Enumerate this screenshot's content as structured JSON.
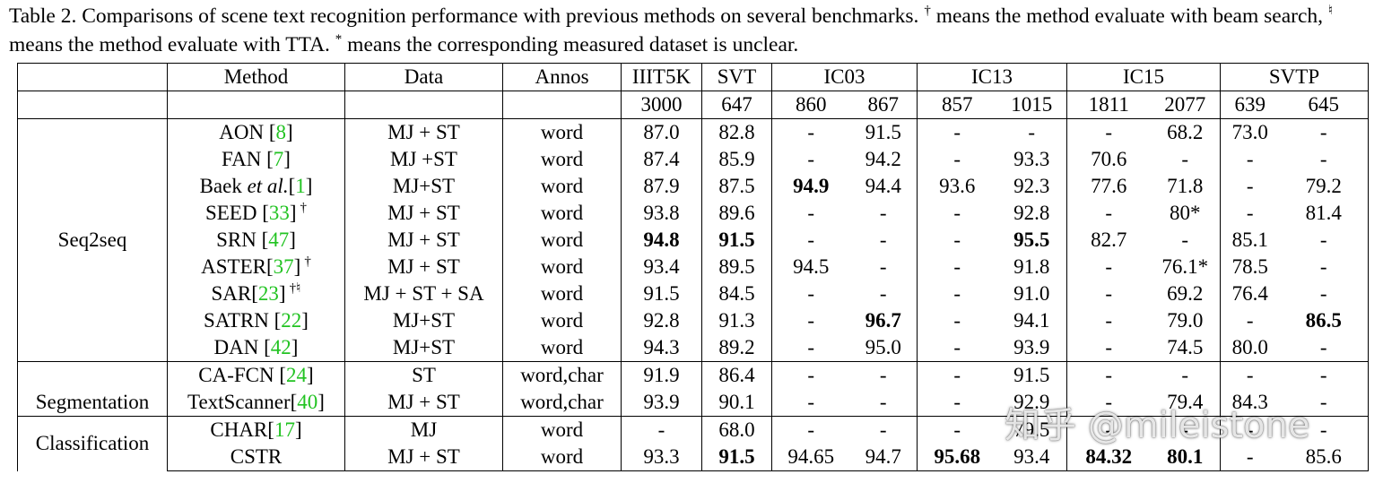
{
  "caption": {
    "p1": "Table 2. Comparisons of scene text recognition performance with previous methods on several benchmarks.",
    "dagger": "†",
    "p2": "means the method evaluate with beam search,",
    "natural": "♮",
    "p3": "means the method evaluate with TTA.",
    "star": "*",
    "p4": "means the corresponding measured dataset is unclear."
  },
  "header": {
    "method": "Method",
    "data": "Data",
    "annos": "Annos",
    "datasets": [
      "IIIT5K",
      "SVT",
      "IC03",
      "IC13",
      "IC15",
      "SVTP"
    ],
    "sizes": [
      "3000",
      "647",
      "860",
      "867",
      "857",
      "1015",
      "1811",
      "2077",
      "639",
      "645"
    ]
  },
  "groups": [
    {
      "label": "Seq2seq",
      "rows": [
        {
          "name": "AON [",
          "ref": "8",
          "name_end": "]",
          "mark": "",
          "data": "MJ + ST",
          "annos": "word",
          "vals": [
            "87.0",
            "82.8",
            "-",
            "91.5",
            "-",
            "-",
            "-",
            "68.2",
            "73.0",
            "-"
          ],
          "bold": []
        },
        {
          "name": "FAN [",
          "ref": "7",
          "name_end": "]",
          "mark": "",
          "data": "MJ +ST",
          "annos": "word",
          "vals": [
            "87.4",
            "85.9",
            "-",
            "94.2",
            "-",
            "93.3",
            "70.6",
            "-",
            "-",
            "-"
          ],
          "bold": []
        },
        {
          "name": "Baek",
          "italic": "et al.",
          "name_mid": "[",
          "ref": "1",
          "name_end": "]",
          "mark": "",
          "data": "MJ+ST",
          "annos": "word",
          "vals": [
            "87.9",
            "87.5",
            "94.9",
            "94.4",
            "93.6",
            "92.3",
            "77.6",
            "71.8",
            "-",
            "79.2"
          ],
          "bold": [
            2
          ]
        },
        {
          "name": "SEED [",
          "ref": "33",
          "name_end": "]",
          "mark": "†",
          "data": "MJ + ST",
          "annos": "word",
          "vals": [
            "93.8",
            "89.6",
            "-",
            "-",
            "-",
            "92.8",
            "-",
            "80*",
            "-",
            "81.4"
          ],
          "bold": []
        },
        {
          "name": "SRN [",
          "ref": "47",
          "name_end": "]",
          "mark": "",
          "data": "MJ + ST",
          "annos": "word",
          "vals": [
            "94.8",
            "91.5",
            "-",
            "-",
            "-",
            "95.5",
            "82.7",
            "-",
            "85.1",
            "-"
          ],
          "bold": [
            0,
            1,
            5
          ]
        },
        {
          "name": "ASTER[",
          "ref": "37",
          "name_end": "]",
          "mark": "†",
          "data": "MJ + ST",
          "annos": "word",
          "vals": [
            "93.4",
            "89.5",
            "94.5",
            "-",
            "-",
            "91.8",
            "-",
            "76.1*",
            "78.5",
            "-"
          ],
          "bold": []
        },
        {
          "name": "SAR[",
          "ref": "23",
          "name_end": "]",
          "mark": "†♮",
          "data": "MJ + ST + SA",
          "annos": "word",
          "vals": [
            "91.5",
            "84.5",
            "-",
            "-",
            "-",
            "91.0",
            "-",
            "69.2",
            "76.4",
            "-"
          ],
          "bold": []
        },
        {
          "name": "SATRN [",
          "ref": "22",
          "name_end": "]",
          "mark": "",
          "data": "MJ+ST",
          "annos": "word",
          "vals": [
            "92.8",
            "91.3",
            "-",
            "96.7",
            "-",
            "94.1",
            "-",
            "79.0",
            "-",
            "86.5"
          ],
          "bold": [
            3,
            9
          ]
        },
        {
          "name": "DAN [",
          "ref": "42",
          "name_end": "]",
          "mark": "",
          "data": "MJ+ST",
          "annos": "word",
          "vals": [
            "94.3",
            "89.2",
            "-",
            "95.0",
            "-",
            "93.9",
            "-",
            "74.5",
            "80.0",
            "-"
          ],
          "bold": []
        }
      ]
    },
    {
      "label": "Segmentation",
      "rows": [
        {
          "name": "CA-FCN [",
          "ref": "24",
          "name_end": "]",
          "mark": "",
          "data": "ST",
          "annos": "word,char",
          "vals": [
            "91.9",
            "86.4",
            "-",
            "-",
            "-",
            "91.5",
            "-",
            "-",
            "-",
            "-"
          ],
          "bold": []
        },
        {
          "name": "TextScanner[",
          "ref": "40",
          "name_end": "]",
          "mark": "",
          "data": "MJ + ST",
          "annos": "word,char",
          "vals": [
            "93.9",
            "90.1",
            "-",
            "-",
            "-",
            "92.9",
            "-",
            "79.4",
            "84.3",
            "-"
          ],
          "bold": []
        }
      ]
    },
    {
      "label": "Classification",
      "rows": [
        {
          "name": "CHAR[",
          "ref": "17",
          "name_end": "]",
          "mark": "",
          "data": "MJ",
          "annos": "word",
          "vals": [
            "-",
            "68.0",
            "-",
            "-",
            "-",
            "79.5",
            "-",
            "-",
            "-",
            "-"
          ],
          "bold": []
        },
        {
          "name": "CSTR",
          "ref": "",
          "name_end": "",
          "mark": "",
          "data": "MJ + ST",
          "annos": "word",
          "vals": [
            "93.3",
            "91.5",
            "94.65",
            "94.7",
            "95.68",
            "93.4",
            "84.32",
            "80.1",
            "-",
            "85.6"
          ],
          "bold": [
            1,
            4,
            6,
            7
          ]
        }
      ]
    }
  ],
  "watermark": "知乎 @mileistone"
}
